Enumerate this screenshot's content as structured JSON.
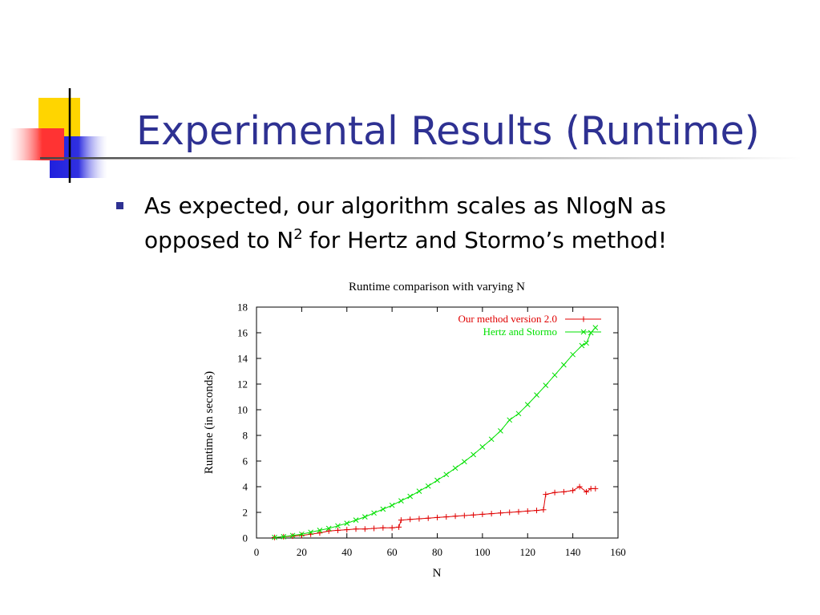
{
  "title": "Experimental Results (Runtime)",
  "bullet": {
    "line1": "As expected, our algorithm scales as NlogN as",
    "line2": "opposed to N",
    "superscript": "2",
    "line2_end": "for Hertz and Stormo’s method!"
  },
  "chart_data": {
    "type": "line",
    "title": "Runtime comparison with varying N",
    "x_label": "N",
    "y_label": "Runtime (in seconds)",
    "xlim": [
      0,
      160
    ],
    "xticks": [
      0,
      20,
      40,
      60,
      80,
      100,
      120,
      140,
      160
    ],
    "ylim": [
      0,
      18
    ],
    "yticks": [
      0,
      2,
      4,
      6,
      8,
      10,
      12,
      14,
      16,
      18
    ],
    "legend": "upper right",
    "series": [
      {
        "name": "Our method version 2.0",
        "color": "#e00000",
        "marker": "plus",
        "x": [
          8,
          12,
          16,
          20,
          24,
          28,
          32,
          36,
          40,
          44,
          48,
          52,
          56,
          60,
          63,
          64,
          68,
          72,
          76,
          80,
          84,
          88,
          92,
          96,
          100,
          104,
          108,
          112,
          116,
          120,
          124,
          127,
          128,
          132,
          136,
          140,
          143,
          146,
          148,
          150
        ],
        "values": [
          0.05,
          0.1,
          0.15,
          0.2,
          0.3,
          0.4,
          0.55,
          0.6,
          0.65,
          0.7,
          0.7,
          0.75,
          0.8,
          0.8,
          0.85,
          1.4,
          1.45,
          1.5,
          1.55,
          1.6,
          1.65,
          1.7,
          1.75,
          1.8,
          1.85,
          1.9,
          1.95,
          2.0,
          2.05,
          2.1,
          2.15,
          2.2,
          3.4,
          3.55,
          3.6,
          3.7,
          4.0,
          3.6,
          3.85,
          3.85
        ]
      },
      {
        "name": "Hertz and Stormo",
        "color": "#00e000",
        "marker": "cross",
        "x": [
          8,
          12,
          16,
          20,
          24,
          28,
          32,
          36,
          40,
          44,
          48,
          52,
          56,
          60,
          64,
          68,
          72,
          76,
          80,
          84,
          88,
          92,
          96,
          100,
          104,
          108,
          112,
          116,
          120,
          124,
          128,
          132,
          136,
          140,
          144,
          146,
          148,
          150
        ],
        "values": [
          0.05,
          0.1,
          0.2,
          0.3,
          0.45,
          0.6,
          0.75,
          0.95,
          1.15,
          1.4,
          1.65,
          1.95,
          2.25,
          2.55,
          2.9,
          3.25,
          3.65,
          4.05,
          4.5,
          4.95,
          5.45,
          5.95,
          6.5,
          7.1,
          7.7,
          8.35,
          9.2,
          9.7,
          10.4,
          11.15,
          11.9,
          12.7,
          13.5,
          14.3,
          15.0,
          15.2,
          16.0,
          16.4
        ]
      }
    ]
  }
}
